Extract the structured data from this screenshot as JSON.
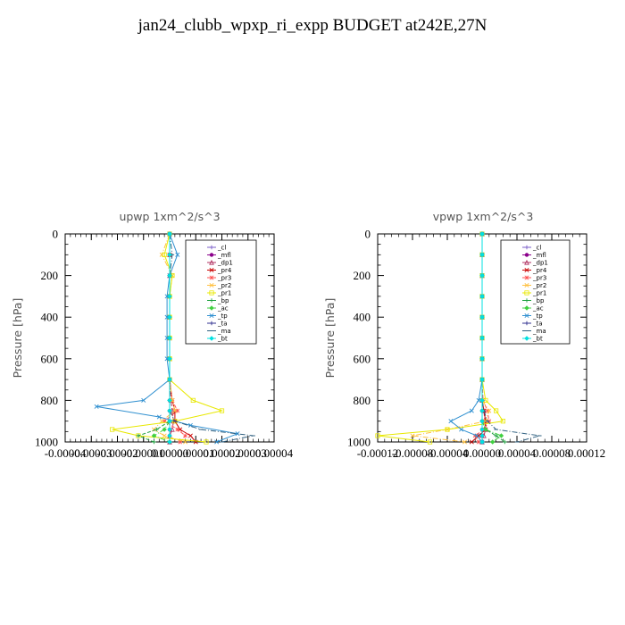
{
  "title": "jan24_clubb_wpxp_ri_expp  BUDGET at242E,27N",
  "chart_data": [
    {
      "type": "line",
      "title": "upwp   1xm^2/s^3",
      "ylabel": "Pressure [hPa]",
      "xlim": [
        -4e-05,
        4e-05
      ],
      "ylim": [
        1000,
        0
      ],
      "yticks": [
        "0",
        "200",
        "400",
        "600",
        "800",
        "1000"
      ],
      "xticks": [
        "-0.00004",
        "-0.00003",
        "-0.00002",
        "-0.00001",
        "0.00000",
        "0.00001",
        "0.00002",
        "0.00003",
        "0.00004"
      ],
      "series": [
        {
          "name": "_cl",
          "color": "#7a5cc8",
          "x": [
            0,
            0,
            0,
            0,
            0,
            0,
            0,
            0,
            0,
            0,
            0,
            0,
            0,
            0
          ],
          "y": [
            0,
            100,
            200,
            300,
            400,
            500,
            600,
            700,
            800,
            850,
            900,
            940,
            970,
            1000
          ]
        },
        {
          "name": "_mfl",
          "color": "#8b008b",
          "x": [
            0,
            0,
            0,
            0,
            0,
            0,
            0,
            0,
            0,
            0,
            0,
            0,
            0,
            0
          ],
          "y": [
            0,
            100,
            200,
            300,
            400,
            500,
            600,
            700,
            800,
            850,
            900,
            940,
            970,
            1000
          ]
        },
        {
          "name": "_dp1",
          "color": "#b03060",
          "x": [
            0,
            0,
            0,
            0,
            0,
            0,
            0,
            0,
            5e-07,
            1e-06,
            1.5e-06,
            1e-06,
            0,
            0
          ],
          "y": [
            0,
            100,
            200,
            300,
            400,
            500,
            600,
            700,
            800,
            850,
            900,
            940,
            970,
            1000
          ]
        },
        {
          "name": "_pr4",
          "color": "#c80000",
          "x": [
            0,
            0,
            0,
            0,
            0,
            0,
            0,
            0,
            1e-06,
            2e-06,
            2e-06,
            4e-06,
            8e-06,
            1e-05
          ],
          "y": [
            0,
            100,
            200,
            300,
            400,
            500,
            600,
            700,
            800,
            850,
            900,
            940,
            970,
            1000
          ]
        },
        {
          "name": "_pr3",
          "color": "#ff5050",
          "x": [
            0,
            0,
            0,
            0,
            0,
            0,
            0,
            0,
            1e-06,
            3e-06,
            -2e-06,
            3e-06,
            6e-06,
            4e-06
          ],
          "y": [
            0,
            100,
            200,
            300,
            400,
            500,
            600,
            700,
            800,
            850,
            900,
            940,
            970,
            1000
          ]
        },
        {
          "name": "_pr2",
          "color": "#ffc040",
          "x": [
            0,
            -3e-06,
            1e-06,
            0,
            0,
            0,
            0,
            0,
            1e-06,
            2e-06,
            -3e-06,
            -6e-06,
            -2e-06,
            6e-06
          ],
          "y": [
            0,
            100,
            200,
            300,
            400,
            500,
            600,
            700,
            800,
            850,
            900,
            940,
            970,
            1000
          ]
        },
        {
          "name": "_pr1",
          "color": "#e8e800",
          "x": [
            0,
            -2e-06,
            1e-06,
            0,
            0,
            0,
            0,
            0,
            9e-06,
            2e-05,
            2e-06,
            -2.2e-05,
            -1.2e-05,
            1.4e-05
          ],
          "y": [
            0,
            100,
            200,
            300,
            400,
            500,
            600,
            700,
            800,
            850,
            900,
            940,
            970,
            1000
          ]
        },
        {
          "name": "_bp",
          "color": "#20a040",
          "x": [
            0,
            0,
            0,
            0,
            0,
            0,
            0,
            0,
            0,
            0,
            0,
            -5e-06,
            -1.2e-05,
            -6e-06
          ],
          "y": [
            0,
            100,
            200,
            300,
            400,
            500,
            600,
            700,
            800,
            850,
            900,
            940,
            970,
            1000
          ]
        },
        {
          "name": "_ac",
          "color": "#40d040",
          "x": [
            0,
            0,
            0,
            0,
            0,
            0,
            0,
            0,
            0,
            0,
            0,
            -2e-06,
            -6e-06,
            0
          ],
          "y": [
            0,
            100,
            200,
            300,
            400,
            500,
            600,
            700,
            800,
            850,
            900,
            940,
            970,
            1000
          ]
        },
        {
          "name": "_tp",
          "color": "#3090d0",
          "x": [
            0,
            3e-06,
            0,
            -1e-06,
            -1e-06,
            -1e-06,
            -1e-06,
            0,
            -1e-05,
            -2.8e-05,
            -4e-06,
            8e-06,
            2.6e-05,
            1.8e-05
          ],
          "y": [
            0,
            100,
            200,
            300,
            400,
            500,
            600,
            700,
            800,
            830,
            880,
            920,
            960,
            1000
          ]
        },
        {
          "name": "_ta",
          "color": "#303090",
          "x": [
            0,
            0,
            0,
            0,
            0,
            0,
            0,
            0,
            0,
            0,
            0,
            0,
            0,
            0
          ],
          "y": [
            0,
            100,
            200,
            300,
            400,
            500,
            600,
            700,
            800,
            850,
            900,
            940,
            970,
            1000
          ]
        },
        {
          "name": "_ma",
          "color": "#306080",
          "x": [
            0,
            1e-06,
            0,
            0,
            0,
            0,
            0,
            0,
            0,
            0,
            2e-06,
            1.2e-05,
            3.2e-05,
            2e-05
          ],
          "y": [
            0,
            100,
            200,
            300,
            400,
            500,
            600,
            700,
            800,
            850,
            900,
            940,
            970,
            1000
          ]
        },
        {
          "name": "_bt",
          "color": "#00e0e0",
          "x": [
            0,
            0,
            0,
            0,
            0,
            0,
            0,
            0,
            0,
            0,
            0,
            0,
            0,
            0
          ],
          "y": [
            0,
            100,
            200,
            300,
            400,
            500,
            600,
            700,
            800,
            850,
            900,
            940,
            970,
            1000
          ]
        }
      ]
    },
    {
      "type": "line",
      "title": "vpwp   1xm^2/s^3",
      "ylabel": "Pressure [hPa]",
      "xlim": [
        -0.00012,
        0.00012
      ],
      "ylim": [
        1000,
        0
      ],
      "yticks": [
        "0",
        "200",
        "400",
        "600",
        "800",
        "1000"
      ],
      "xticks": [
        "-0.00012",
        "-0.00008",
        "-0.00004",
        "0.00000",
        "0.00004",
        "0.00008",
        "0.00012"
      ],
      "series": [
        {
          "name": "_cl",
          "color": "#7a5cc8",
          "x": [
            0,
            0,
            0,
            0,
            0,
            0,
            0,
            0,
            0,
            0,
            0,
            0,
            0,
            0
          ],
          "y": [
            0,
            100,
            200,
            300,
            400,
            500,
            600,
            700,
            800,
            850,
            900,
            940,
            970,
            1000
          ]
        },
        {
          "name": "_mfl",
          "color": "#8b008b",
          "x": [
            0,
            0,
            0,
            0,
            0,
            0,
            0,
            0,
            0,
            0,
            0,
            0,
            0,
            0
          ],
          "y": [
            0,
            100,
            200,
            300,
            400,
            500,
            600,
            700,
            800,
            850,
            900,
            940,
            970,
            1000
          ]
        },
        {
          "name": "_dp1",
          "color": "#b03060",
          "x": [
            0,
            0,
            0,
            0,
            0,
            0,
            0,
            0,
            0,
            2e-06,
            3e-06,
            4e-06,
            2e-06,
            0
          ],
          "y": [
            0,
            100,
            200,
            300,
            400,
            500,
            600,
            700,
            800,
            850,
            900,
            940,
            970,
            1000
          ]
        },
        {
          "name": "_pr4",
          "color": "#c80000",
          "x": [
            0,
            0,
            0,
            0,
            0,
            0,
            0,
            0,
            0,
            2e-06,
            4e-06,
            4e-06,
            -4e-06,
            -1.2e-05
          ],
          "y": [
            0,
            100,
            200,
            300,
            400,
            500,
            600,
            700,
            800,
            850,
            900,
            940,
            970,
            1000
          ]
        },
        {
          "name": "_pr3",
          "color": "#ff5050",
          "x": [
            0,
            0,
            0,
            0,
            0,
            0,
            0,
            0,
            1e-06,
            6e-06,
            8e-06,
            2e-06,
            -8e-06,
            -4e-06
          ],
          "y": [
            0,
            100,
            200,
            300,
            400,
            500,
            600,
            700,
            800,
            850,
            900,
            940,
            970,
            1000
          ]
        },
        {
          "name": "_pr2",
          "color": "#ffc040",
          "x": [
            0,
            0,
            0,
            0,
            0,
            0,
            0,
            0,
            0,
            8e-06,
            4e-06,
            -4e-05,
            -8e-05,
            -2e-05
          ],
          "y": [
            0,
            100,
            200,
            300,
            400,
            500,
            600,
            700,
            800,
            850,
            900,
            940,
            970,
            1000
          ]
        },
        {
          "name": "_pr1",
          "color": "#e8e800",
          "x": [
            0,
            0,
            0,
            0,
            0,
            0,
            0,
            0,
            4e-06,
            1.6e-05,
            2.4e-05,
            -4e-05,
            -0.00012,
            -6e-05
          ],
          "y": [
            0,
            100,
            200,
            300,
            400,
            500,
            600,
            700,
            800,
            850,
            900,
            940,
            970,
            1000
          ]
        },
        {
          "name": "_bp",
          "color": "#20a040",
          "x": [
            0,
            0,
            0,
            0,
            0,
            0,
            0,
            0,
            0,
            0,
            0,
            4e-06,
            1.6e-05,
            2.6e-05
          ],
          "y": [
            0,
            100,
            200,
            300,
            400,
            500,
            600,
            700,
            800,
            850,
            900,
            940,
            970,
            1000
          ]
        },
        {
          "name": "_ac",
          "color": "#40d040",
          "x": [
            0,
            0,
            0,
            0,
            0,
            0,
            0,
            0,
            0,
            0,
            0,
            4e-06,
            2.2e-05,
            1.2e-05
          ],
          "y": [
            0,
            100,
            200,
            300,
            400,
            500,
            600,
            700,
            800,
            850,
            900,
            940,
            970,
            1000
          ]
        },
        {
          "name": "_tp",
          "color": "#3090d0",
          "x": [
            0,
            0,
            0,
            0,
            0,
            0,
            0,
            0,
            -4e-06,
            -1.2e-05,
            -3.6e-05,
            -2.4e-05,
            -6e-06,
            0
          ],
          "y": [
            0,
            100,
            200,
            300,
            400,
            500,
            600,
            700,
            800,
            850,
            900,
            940,
            970,
            1000
          ]
        },
        {
          "name": "_ta",
          "color": "#303090",
          "x": [
            0,
            0,
            0,
            0,
            0,
            0,
            0,
            0,
            0,
            0,
            0,
            0,
            0,
            0
          ],
          "y": [
            0,
            100,
            200,
            300,
            400,
            500,
            600,
            700,
            800,
            850,
            900,
            940,
            970,
            1000
          ]
        },
        {
          "name": "_ma",
          "color": "#306080",
          "x": [
            0,
            0,
            0,
            0,
            0,
            0,
            0,
            0,
            0,
            2e-06,
            6e-06,
            1.6e-05,
            6.6e-05,
            4e-05
          ],
          "y": [
            0,
            100,
            200,
            300,
            400,
            500,
            600,
            700,
            800,
            850,
            900,
            940,
            970,
            1000
          ]
        },
        {
          "name": "_bt",
          "color": "#00e0e0",
          "x": [
            0,
            0,
            0,
            0,
            0,
            0,
            0,
            0,
            0,
            0,
            0,
            0,
            0,
            0
          ],
          "y": [
            0,
            100,
            200,
            300,
            400,
            500,
            600,
            700,
            800,
            850,
            900,
            940,
            970,
            1000
          ]
        }
      ]
    }
  ]
}
